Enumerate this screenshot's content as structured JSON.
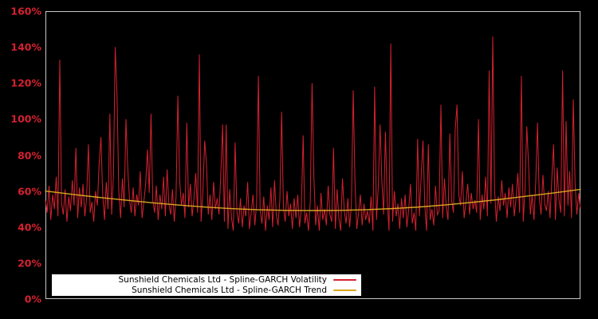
{
  "chart_data": {
    "type": "line",
    "title": "",
    "background_color": "#000000",
    "plot_border_color": "#c8c8c8",
    "axis_label_color": "#d52130",
    "legend_background": "#ffffff",
    "grid": false,
    "legend_position": "bottom-left",
    "xlabel": "",
    "ylabel": "",
    "ylim": [
      0,
      160
    ],
    "ytick_labels": [
      "0%",
      "20%",
      "40%",
      "60%",
      "80%",
      "100%",
      "120%",
      "140%",
      "160%"
    ],
    "xtick_labels": [],
    "series": [
      {
        "name": "Sunshield Chemicals Ltd - Spline-GARCH Volatility",
        "color": "#d52130",
        "unit": "percent",
        "values": [
          55,
          48,
          63,
          44,
          58,
          50,
          68,
          46,
          133,
          53,
          47,
          61,
          43,
          57,
          49,
          66,
          52,
          84,
          45,
          62,
          51,
          64,
          46,
          56,
          86,
          48,
          54,
          43,
          60,
          52,
          75,
          90,
          58,
          44,
          65,
          50,
          103,
          47,
          69,
          140,
          113,
          60,
          45,
          67,
          51,
          100,
          73,
          55,
          48,
          62,
          46,
          58,
          52,
          71,
          45,
          54,
          64,
          83,
          59,
          103,
          55,
          48,
          63,
          44,
          58,
          50,
          68,
          46,
          72,
          53,
          47,
          61,
          43,
          57,
          113,
          66,
          52,
          59,
          45,
          98,
          51,
          64,
          46,
          56,
          70,
          48,
          136,
          43,
          60,
          88,
          75,
          47,
          58,
          44,
          65,
          50,
          56,
          47,
          69,
          97,
          43,
          97,
          39,
          61,
          45,
          38,
          87,
          49,
          42,
          56,
          40,
          52,
          46,
          65,
          39,
          48,
          58,
          41,
          53,
          124,
          49,
          42,
          57,
          38,
          52,
          44,
          62,
          40,
          66,
          47,
          41,
          55,
          104,
          51,
          43,
          60,
          46,
          53,
          39,
          56,
          45,
          58,
          40,
          50,
          91,
          42,
          48,
          38,
          54,
          120,
          69,
          41,
          52,
          38,
          59,
          44,
          50,
          41,
          63,
          47,
          43,
          84,
          39,
          61,
          45,
          38,
          67,
          49,
          42,
          56,
          40,
          52,
          116,
          65,
          39,
          48,
          58,
          41,
          53,
          44,
          49,
          42,
          57,
          38,
          118,
          44,
          62,
          97,
          66,
          47,
          93,
          55,
          38,
          142,
          43,
          60,
          46,
          53,
          39,
          56,
          45,
          58,
          40,
          50,
          64,
          42,
          48,
          38,
          89,
          46,
          69,
          88,
          52,
          38,
          86,
          44,
          50,
          41,
          63,
          47,
          49,
          108,
          45,
          67,
          51,
          44,
          92,
          55,
          48,
          94,
          108,
          58,
          52,
          71,
          45,
          54,
          64,
          47,
          59,
          50,
          55,
          48,
          100,
          44,
          58,
          50,
          68,
          46,
          127,
          53,
          146,
          61,
          43,
          57,
          49,
          66,
          52,
          59,
          45,
          62,
          51,
          64,
          46,
          56,
          70,
          48,
          124,
          43,
          60,
          96,
          75,
          47,
          58,
          44,
          65,
          98,
          56,
          47,
          69,
          53,
          49,
          60,
          45,
          67,
          86,
          44,
          73,
          55,
          48,
          127,
          46,
          99,
          52,
          71,
          45,
          111,
          64,
          47,
          59,
          50
        ]
      },
      {
        "name": "Sunshield Chemicals Ltd - Spline-GARCH Trend",
        "color": "#daa520",
        "unit": "percent",
        "values": [
          60,
          58.2,
          56.5,
          55,
          53.5,
          52.2,
          51.1,
          50.2,
          49.6,
          49.3,
          49.2,
          49.3,
          49.7,
          50.3,
          51.2,
          52.4,
          53.8,
          55.4,
          57.2,
          59,
          61
        ]
      }
    ]
  }
}
